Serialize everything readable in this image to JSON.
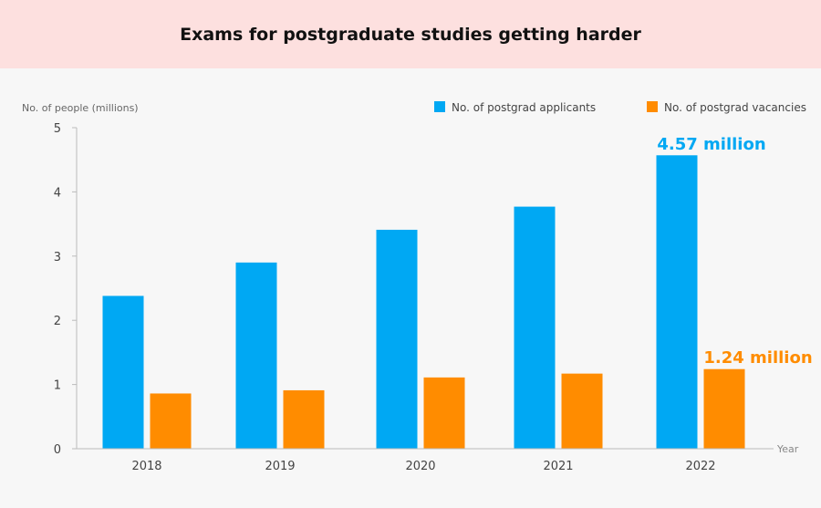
{
  "colors": {
    "applicants": "#00a8f3",
    "vacancies": "#ff8c00",
    "axis": "#bbbbbb",
    "tick_text": "#444444",
    "muted_text": "#666666",
    "title_bg": "#fde0df",
    "page_bg": "#f7f7f7"
  },
  "chart_data": {
    "type": "bar",
    "title": "Exams for postgraduate studies getting harder",
    "ylabel": "No. of people (millions)",
    "xlabel": "Year",
    "categories": [
      "2018",
      "2019",
      "2020",
      "2021",
      "2022"
    ],
    "series": [
      {
        "name": "No. of postgrad applicants",
        "values": [
          2.38,
          2.9,
          3.41,
          3.77,
          4.57
        ]
      },
      {
        "name": "No. of postgrad vacancies",
        "values": [
          0.86,
          0.91,
          1.11,
          1.17,
          1.24
        ]
      }
    ],
    "ylim": [
      0,
      5
    ],
    "yticks": [
      "0",
      "1",
      "2",
      "3",
      "4",
      "5"
    ],
    "grid": false,
    "legend_position": "top-right",
    "annotations": {
      "applicants_2022": "4.57 million",
      "vacancies_2022": "1.24 million"
    }
  }
}
